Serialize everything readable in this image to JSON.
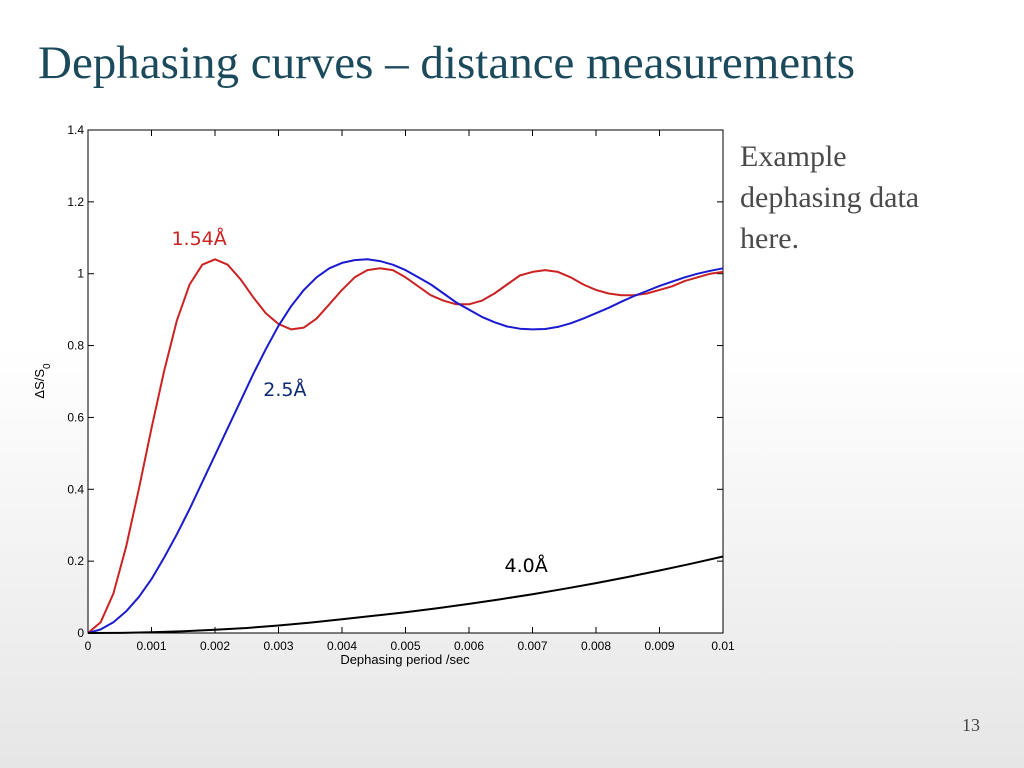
{
  "slide": {
    "title": "Dephasing curves – distance measurements",
    "side_note": "Example\ndephasing data\nhere.",
    "page_number": "13"
  },
  "chart_data": {
    "type": "line",
    "xlabel": "Dephasing period /sec",
    "ylabel_main": "ΔS/S",
    "ylabel_sub": "0",
    "xlim": [
      0,
      0.01
    ],
    "ylim": [
      0,
      1.4
    ],
    "x_ticks": [
      "0",
      "0.001",
      "0.002",
      "0.003",
      "0.004",
      "0.005",
      "0.006",
      "0.007",
      "0.008",
      "0.009",
      "0.01"
    ],
    "y_ticks": [
      "0",
      "0.2",
      "0.4",
      "0.6",
      "0.8",
      "1",
      "1.2",
      "1.4"
    ],
    "grid": false,
    "series": [
      {
        "name": "1.54Å",
        "color": "#cc2222",
        "x": [
          0,
          0.0002,
          0.0004,
          0.0006,
          0.0008,
          0.001,
          0.0012,
          0.0014,
          0.0016,
          0.0018,
          0.002,
          0.0022,
          0.0024,
          0.0026,
          0.0028,
          0.003,
          0.0032,
          0.0034,
          0.0036,
          0.0038,
          0.004,
          0.0042,
          0.0044,
          0.0046,
          0.0048,
          0.005,
          0.0052,
          0.0054,
          0.0056,
          0.0058,
          0.006,
          0.0062,
          0.0064,
          0.0066,
          0.0068,
          0.007,
          0.0072,
          0.0074,
          0.0076,
          0.0078,
          0.008,
          0.0082,
          0.0084,
          0.0086,
          0.0088,
          0.009,
          0.0092,
          0.0094,
          0.0096,
          0.0098,
          0.01
        ],
        "y": [
          0,
          0.03,
          0.11,
          0.24,
          0.4,
          0.57,
          0.73,
          0.87,
          0.97,
          1.025,
          1.04,
          1.025,
          0.985,
          0.935,
          0.89,
          0.86,
          0.845,
          0.85,
          0.875,
          0.915,
          0.955,
          0.99,
          1.01,
          1.015,
          1.01,
          0.99,
          0.965,
          0.94,
          0.925,
          0.915,
          0.915,
          0.925,
          0.945,
          0.97,
          0.995,
          1.005,
          1.01,
          1.005,
          0.99,
          0.97,
          0.955,
          0.945,
          0.94,
          0.94,
          0.945,
          0.955,
          0.965,
          0.98,
          0.99,
          1.0,
          1.005
        ]
      },
      {
        "name": "2.5Å",
        "color": "#1a1ad0",
        "x": [
          0,
          0.0002,
          0.0004,
          0.0006,
          0.0008,
          0.001,
          0.0012,
          0.0014,
          0.0016,
          0.0018,
          0.002,
          0.0022,
          0.0024,
          0.0026,
          0.0028,
          0.003,
          0.0032,
          0.0034,
          0.0036,
          0.0038,
          0.004,
          0.0042,
          0.0044,
          0.0046,
          0.0048,
          0.005,
          0.0052,
          0.0054,
          0.0056,
          0.0058,
          0.006,
          0.0062,
          0.0064,
          0.0066,
          0.0068,
          0.007,
          0.0072,
          0.0074,
          0.0076,
          0.0078,
          0.008,
          0.0082,
          0.0084,
          0.0086,
          0.0088,
          0.009,
          0.0092,
          0.0094,
          0.0096,
          0.0098,
          0.01
        ],
        "y": [
          0,
          0.01,
          0.03,
          0.06,
          0.1,
          0.15,
          0.21,
          0.275,
          0.345,
          0.42,
          0.495,
          0.57,
          0.645,
          0.72,
          0.79,
          0.855,
          0.91,
          0.955,
          0.99,
          1.015,
          1.03,
          1.038,
          1.04,
          1.035,
          1.025,
          1.01,
          0.99,
          0.97,
          0.945,
          0.92,
          0.9,
          0.88,
          0.865,
          0.853,
          0.847,
          0.845,
          0.846,
          0.852,
          0.862,
          0.875,
          0.89,
          0.905,
          0.922,
          0.938,
          0.952,
          0.966,
          0.978,
          0.99,
          1.0,
          1.008,
          1.015
        ]
      },
      {
        "name": "4.0Å",
        "color": "#000000",
        "x": [
          0,
          0.0005,
          0.001,
          0.0015,
          0.002,
          0.0025,
          0.003,
          0.0035,
          0.004,
          0.0045,
          0.005,
          0.0055,
          0.006,
          0.0065,
          0.007,
          0.0075,
          0.008,
          0.0085,
          0.009,
          0.0095,
          0.01
        ],
        "y": [
          0,
          0.0003,
          0.002,
          0.005,
          0.009,
          0.014,
          0.021,
          0.029,
          0.038,
          0.048,
          0.058,
          0.069,
          0.081,
          0.094,
          0.108,
          0.123,
          0.139,
          0.156,
          0.174,
          0.193,
          0.213
        ]
      }
    ],
    "series_label_colors": [
      "#cc2222",
      "#0d2a73",
      "#000000"
    ]
  }
}
